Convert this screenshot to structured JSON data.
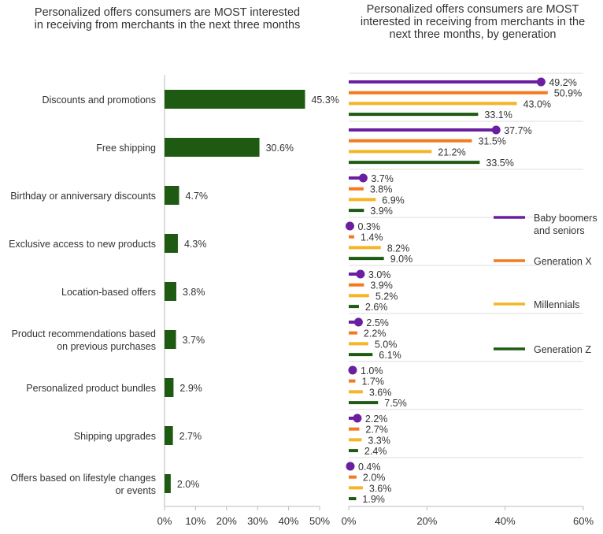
{
  "chart_data": [
    {
      "type": "bar",
      "orientation": "horizontal",
      "title": "Personalized offers consumers are MOST interested in receiving from merchants in the next three months",
      "categories": [
        "Discounts and promotions",
        "Free shipping",
        "Birthday or anniversary discounts",
        "Exclusive access to new products",
        "Location-based offers",
        "Product recommendations based on previous purchases",
        "Personalized product bundles",
        "Shipping upgrades",
        "Offers based on lifestyle changes or events"
      ],
      "category_lines": [
        [
          "Discounts and promotions"
        ],
        [
          "Free shipping"
        ],
        [
          "Birthday or anniversary discounts"
        ],
        [
          "Exclusive access to new products"
        ],
        [
          "Location-based offers"
        ],
        [
          "Product recommendations based",
          "on previous purchases"
        ],
        [
          "Personalized product bundles"
        ],
        [
          "Shipping upgrades"
        ],
        [
          "Offers based on lifestyle changes",
          "or events"
        ]
      ],
      "values": [
        45.3,
        30.6,
        4.7,
        4.3,
        3.8,
        3.7,
        2.9,
        2.7,
        2.0
      ],
      "data_labels": [
        "45.3%",
        "30.6%",
        "4.7%",
        "4.3%",
        "3.8%",
        "3.7%",
        "2.9%",
        "2.7%",
        "2.0%"
      ],
      "xlim": [
        0,
        50
      ],
      "xticks": [
        "0%",
        "10%",
        "20%",
        "30%",
        "40%",
        "50%"
      ],
      "color": "#1e5a12",
      "grid": false
    },
    {
      "type": "bar",
      "orientation": "horizontal",
      "style": "lollipop-first-series",
      "title": "Personalized offers consumers are MOST interested in receiving from merchants in the next three months, by generation",
      "categories": [
        "Discounts and promotions",
        "Free shipping",
        "Birthday or anniversary discounts",
        "Exclusive access to new products",
        "Location-based offers",
        "Product recommendations based on previous purchases",
        "Personalized product bundles",
        "Shipping upgrades",
        "Offers based on lifestyle changes or events"
      ],
      "series": [
        {
          "name": "Baby boomers and seniors",
          "legend_lines": [
            "Baby boomers",
            "and seniors"
          ],
          "color": "#6a1fa0",
          "values": [
            49.2,
            37.7,
            3.7,
            0.3,
            3.0,
            2.5,
            1.0,
            2.2,
            0.4
          ]
        },
        {
          "name": "Generation X",
          "legend_lines": [
            "Generation X"
          ],
          "color": "#f47a20",
          "values": [
            50.9,
            31.5,
            3.8,
            1.4,
            3.9,
            2.2,
            1.7,
            2.7,
            2.0
          ]
        },
        {
          "name": "Millennials",
          "legend_lines": [
            "Millennials"
          ],
          "color": "#f5b526",
          "values": [
            43.0,
            21.2,
            6.9,
            8.2,
            5.2,
            5.0,
            3.6,
            3.3,
            3.6
          ]
        },
        {
          "name": "Generation Z",
          "legend_lines": [
            "Generation Z"
          ],
          "color": "#1e5a12",
          "values": [
            33.1,
            33.5,
            3.9,
            9.0,
            2.6,
            6.1,
            7.5,
            2.4,
            1.9
          ]
        }
      ],
      "xlim": [
        0,
        60
      ],
      "xticks": [
        "0%",
        "20%",
        "40%",
        "60%"
      ],
      "legend_position": "right",
      "grid": false
    }
  ]
}
